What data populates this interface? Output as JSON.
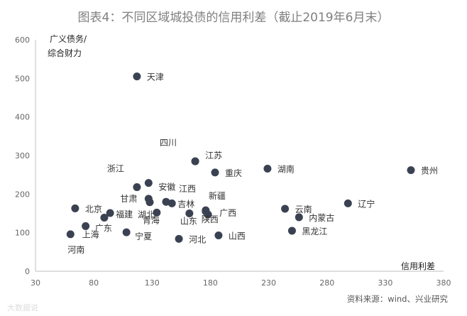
{
  "chart_data": {
    "type": "scatter",
    "title": "图表4：不同区域城投债的信用利差（截止2019年6月末）",
    "ylabel_line1": "广义债务/",
    "ylabel_line2": "综合财力",
    "xlabel": "信用利差",
    "xlim": [
      30,
      380
    ],
    "ylim": [
      0,
      600
    ],
    "xticks": [
      30,
      80,
      130,
      180,
      230,
      280,
      330,
      380
    ],
    "yticks": [
      0,
      100,
      200,
      300,
      400,
      500,
      600
    ],
    "grid": false,
    "marker_color": "#3a4252",
    "points": [
      {
        "name": "天津",
        "x": 117,
        "y": 505
      },
      {
        "name": "四川",
        "x": 167,
        "y": 285
      },
      {
        "name": "江苏",
        "x": 167,
        "y": 285
      },
      {
        "name": "重庆",
        "x": 184,
        "y": 256
      },
      {
        "name": "湖南",
        "x": 229,
        "y": 266
      },
      {
        "name": "贵州",
        "x": 352,
        "y": 262
      },
      {
        "name": "浙江",
        "x": 117,
        "y": 218
      },
      {
        "name": "安徽",
        "x": 127,
        "y": 229
      },
      {
        "name": "江西",
        "x": 142,
        "y": 180
      },
      {
        "name": "甘肃",
        "x": 127,
        "y": 188
      },
      {
        "name": "吉林",
        "x": 147,
        "y": 176
      },
      {
        "name": "新疆",
        "x": 176,
        "y": 158
      },
      {
        "name": "北京",
        "x": 64,
        "y": 163
      },
      {
        "name": "湖北",
        "x": 128,
        "y": 179
      },
      {
        "name": "福建",
        "x": 94,
        "y": 151
      },
      {
        "name": "广西",
        "x": 178,
        "y": 147
      },
      {
        "name": "广东",
        "x": 89,
        "y": 139
      },
      {
        "name": "青海",
        "x": 134,
        "y": 152
      },
      {
        "name": "陕西",
        "x": 176,
        "y": 155
      },
      {
        "name": "山东",
        "x": 162,
        "y": 150
      },
      {
        "name": "上海",
        "x": 73,
        "y": 117
      },
      {
        "name": "宁夏",
        "x": 108,
        "y": 101
      },
      {
        "name": "河南",
        "x": 60,
        "y": 96
      },
      {
        "name": "河北",
        "x": 153,
        "y": 84
      },
      {
        "name": "山西",
        "x": 187,
        "y": 93
      },
      {
        "name": "云南",
        "x": 244,
        "y": 162
      },
      {
        "name": "内蒙古",
        "x": 256,
        "y": 140
      },
      {
        "name": "黑龙江",
        "x": 250,
        "y": 105
      },
      {
        "name": "辽宁",
        "x": 298,
        "y": 176
      }
    ]
  },
  "source": "资料来源：wind、兴业研究",
  "watermark": "大数据说"
}
